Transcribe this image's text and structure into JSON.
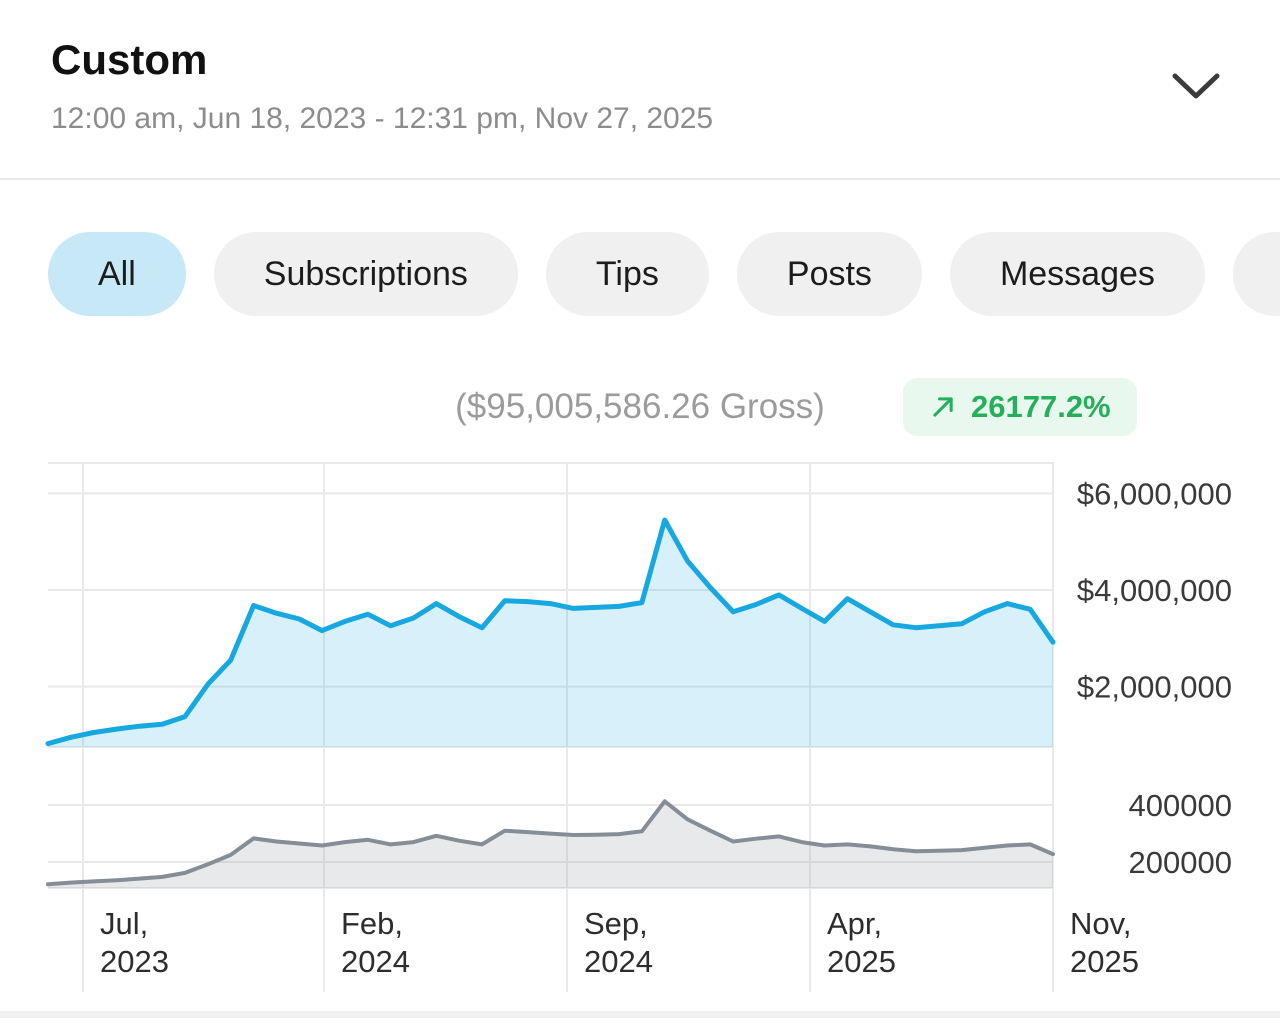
{
  "header": {
    "title": "Custom",
    "date_range": "12:00 am, Jun 18, 2023 - 12:31 pm, Nov 27, 2025"
  },
  "icons": {
    "expand": "chevron-down",
    "trend": "arrow-up-right"
  },
  "filters": [
    {
      "label": "All",
      "active": true
    },
    {
      "label": "Subscriptions",
      "active": false
    },
    {
      "label": "Tips",
      "active": false
    },
    {
      "label": "Posts",
      "active": false
    },
    {
      "label": "Messages",
      "active": false
    }
  ],
  "summary": {
    "gross_text": "($95,005,586.26 Gross)",
    "change_value": "26177.2%"
  },
  "colors": {
    "accent_blue": "#18a8e1",
    "secondary_gray": "#858e96",
    "pill_active_bg": "#c7e8f6",
    "pill_bg": "#f0f0f0",
    "badge_bg": "#e9f8ee",
    "badge_green": "#24b05b",
    "grid": "#e9e9e9"
  },
  "chart_data": [
    {
      "type": "area",
      "series_name": "gross-earnings",
      "line_color": "#18a8e1",
      "fill_color": "#18a8e1",
      "fill_opacity": 0.17,
      "ylim": [
        750000,
        6630000
      ],
      "y_ticks": [
        2000000,
        4000000,
        6000000
      ],
      "y_tick_labels": [
        "$2,000,000",
        "$4,000,000",
        "$6,000,000"
      ],
      "x_tick_labels": [
        [
          "Jul,",
          "2023"
        ],
        [
          "Feb,",
          "2024"
        ],
        [
          "Sep,",
          "2024"
        ],
        [
          "Apr,",
          "2025"
        ],
        [
          "Nov,",
          "2025"
        ]
      ],
      "legend": "none",
      "grid": "on",
      "y_axis_position": "right",
      "values": [
        820000,
        950000,
        1050000,
        1120000,
        1180000,
        1220000,
        1380000,
        2050000,
        2550000,
        3680000,
        3520000,
        3400000,
        3160000,
        3350000,
        3500000,
        3260000,
        3420000,
        3720000,
        3450000,
        3220000,
        3780000,
        3760000,
        3720000,
        3620000,
        3640000,
        3660000,
        3740000,
        5450000,
        4600000,
        4050000,
        3550000,
        3700000,
        3900000,
        3620000,
        3350000,
        3820000,
        3550000,
        3280000,
        3220000,
        3260000,
        3300000,
        3550000,
        3720000,
        3600000,
        2920000
      ]
    },
    {
      "type": "area",
      "series_name": "secondary-metric",
      "line_color": "#858e96",
      "fill_color": "#8b939a",
      "fill_opacity": 0.2,
      "ylim": [
        109000,
        558000
      ],
      "y_ticks": [
        200000,
        400000
      ],
      "y_tick_labels": [
        "200000",
        "400000"
      ],
      "legend": "none",
      "grid": "on",
      "y_axis_position": "right",
      "values": [
        122000,
        128000,
        132000,
        136000,
        142000,
        148000,
        162000,
        192000,
        225000,
        283000,
        272000,
        265000,
        258000,
        270000,
        278000,
        262000,
        270000,
        292000,
        275000,
        262000,
        310000,
        305000,
        300000,
        295000,
        296000,
        298000,
        308000,
        413000,
        350000,
        310000,
        272000,
        282000,
        290000,
        270000,
        258000,
        262000,
        255000,
        245000,
        238000,
        240000,
        242000,
        250000,
        258000,
        262000,
        228000
      ]
    }
  ]
}
